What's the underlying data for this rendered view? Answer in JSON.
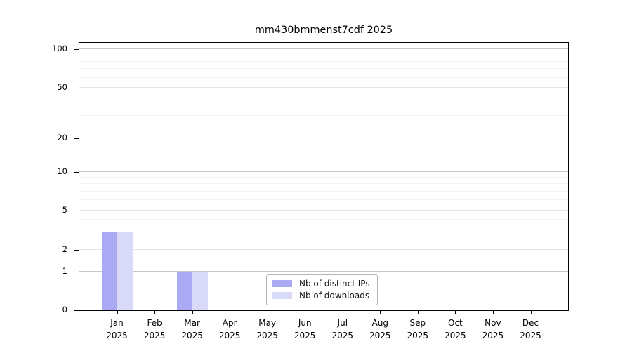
{
  "chart_data": {
    "type": "bar",
    "title": "mm430bmmenst7cdf 2025",
    "categories": [
      {
        "month": "Jan",
        "year": "2025"
      },
      {
        "month": "Feb",
        "year": "2025"
      },
      {
        "month": "Mar",
        "year": "2025"
      },
      {
        "month": "Apr",
        "year": "2025"
      },
      {
        "month": "May",
        "year": "2025"
      },
      {
        "month": "Jun",
        "year": "2025"
      },
      {
        "month": "Jul",
        "year": "2025"
      },
      {
        "month": "Aug",
        "year": "2025"
      },
      {
        "month": "Sep",
        "year": "2025"
      },
      {
        "month": "Oct",
        "year": "2025"
      },
      {
        "month": "Nov",
        "year": "2025"
      },
      {
        "month": "Dec",
        "year": "2025"
      }
    ],
    "series": [
      {
        "name": "Nb of distinct IPs",
        "color": "#a9a9f4",
        "values": [
          3,
          0,
          1,
          0,
          0,
          0,
          0,
          0,
          0,
          0,
          0,
          0
        ]
      },
      {
        "name": "Nb of downloads",
        "color": "#d9d9f8",
        "values": [
          3,
          0,
          1,
          0,
          0,
          0,
          0,
          0,
          0,
          0,
          0,
          0
        ]
      }
    ],
    "y_axis": {
      "scale": "symlog",
      "ticks": [
        0,
        1,
        2,
        5,
        10,
        20,
        50,
        100
      ],
      "minor_ticks": [
        3,
        4,
        6,
        7,
        8,
        9,
        30,
        40,
        60,
        70,
        80,
        90
      ]
    },
    "y_scale_anchors": [
      [
        0,
        0
      ],
      [
        1,
        0.144
      ],
      [
        2,
        0.226
      ],
      [
        5,
        0.374
      ],
      [
        10,
        0.518
      ],
      [
        20,
        0.643
      ],
      [
        50,
        0.832
      ],
      [
        100,
        0.976
      ]
    ],
    "legend_position": "lower center inside plot",
    "grid": "on"
  },
  "colors": {
    "bar_distinct_ips": "#a9a9f4",
    "bar_downloads": "#d9d9f8",
    "gridline_minor": "#f2f2f2",
    "gridline_major": "#e5e5e5",
    "gridline_power10": "#c6c6c6",
    "axis_spine": "#000000",
    "legend_border": "#b3b3b3"
  }
}
